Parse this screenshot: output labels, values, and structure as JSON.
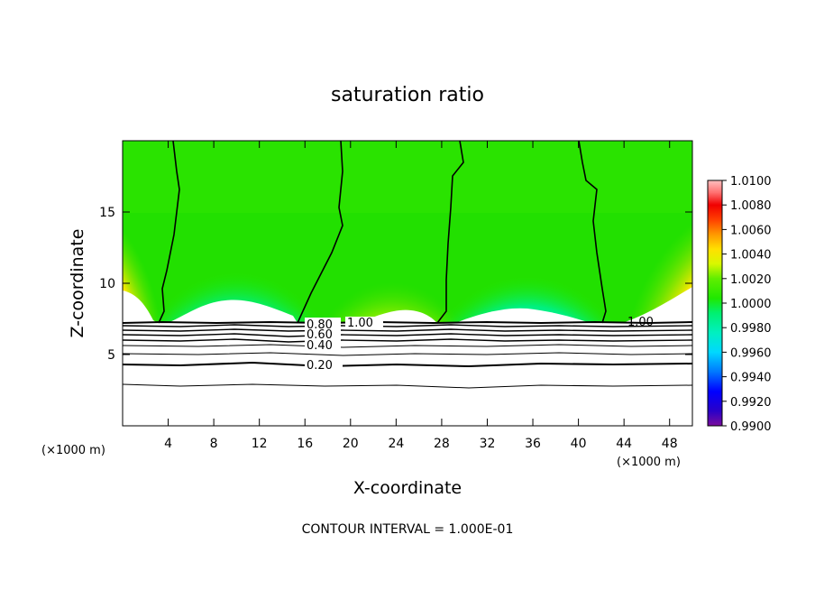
{
  "chart_data": {
    "type": "heatmap",
    "title": "saturation ratio",
    "xlabel": "X-coordinate",
    "ylabel": "Z-coordinate",
    "x_unit": "(×1000 m)",
    "xlim": [
      0,
      50
    ],
    "ylim": [
      0,
      20
    ],
    "x_ticks": [
      4,
      8,
      12,
      16,
      20,
      24,
      28,
      32,
      36,
      40,
      44,
      48
    ],
    "y_ticks": [
      5,
      10,
      15
    ],
    "colorbar": {
      "min": 0.99,
      "max": 1.01,
      "ticks": [
        "1.0100",
        "1.0080",
        "1.0060",
        "1.0040",
        "1.0020",
        "1.0000",
        "0.9980",
        "0.9960",
        "0.9940",
        "0.9920",
        "0.9900"
      ],
      "colors": [
        "#7a0d9c",
        "#2a00c8",
        "#0000ff",
        "#0050ff",
        "#00a8ff",
        "#00e0e0",
        "#00f0a0",
        "#40ff40",
        "#00e000",
        "#30e000",
        "#a0f000",
        "#ffff00",
        "#ffc000",
        "#ff8000",
        "#ff4000",
        "#ff0000",
        "#e80000",
        "#ff6060",
        "#ffa0a0",
        "#ffd0d0"
      ]
    },
    "contour_lines": {
      "levels": [
        0.2,
        0.4,
        0.6,
        0.8,
        1.0
      ],
      "labels": [
        "0.20",
        "0.40",
        "0.60",
        "0.80",
        "1.00",
        "1.00"
      ]
    },
    "footer": "CONTOUR INTERVAL = 1.000E-01"
  }
}
